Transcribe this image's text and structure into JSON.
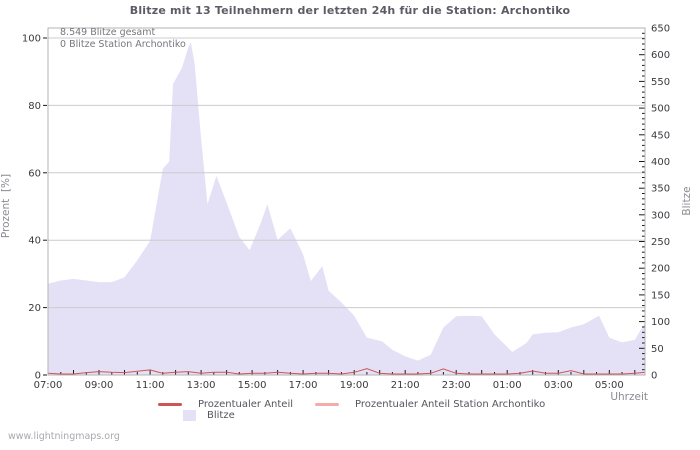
{
  "page": {
    "watermark": "www.lightningmaps.org"
  },
  "chart_data": {
    "type": "area",
    "title": "Blitze mit 13 Teilnehmern der letzten 24h für die Station: Archontiko",
    "annotations": [
      "8.549 Blitze gesamt",
      "0 Blitze Station Archontiko"
    ],
    "grid": "horizontal-only",
    "legend_position": "bottom",
    "colors": {
      "area_fill": "#e4e1f7",
      "percent_line": "#cc5555",
      "station_line": "#f5abab",
      "gridline": "#cccccc",
      "frame": "#b3b3b3",
      "tick": "#1a1a1a"
    },
    "x_axis": {
      "label": "Uhrzeit",
      "range_hours": [
        0,
        23.4
      ],
      "minor_step_hours": 0.5,
      "ticks": [
        {
          "h": 0,
          "label": "07:00"
        },
        {
          "h": 2,
          "label": "09:00"
        },
        {
          "h": 4,
          "label": "11:00"
        },
        {
          "h": 6,
          "label": "13:00"
        },
        {
          "h": 8,
          "label": "15:00"
        },
        {
          "h": 10,
          "label": "17:00"
        },
        {
          "h": 12,
          "label": "19:00"
        },
        {
          "h": 14,
          "label": "21:00"
        },
        {
          "h": 16,
          "label": "23:00"
        },
        {
          "h": 18,
          "label": "01:00"
        },
        {
          "h": 20,
          "label": "03:00"
        },
        {
          "h": 22,
          "label": "05:00"
        }
      ]
    },
    "y_axis_left": {
      "label": "Prozent  [%]",
      "range": [
        0,
        100
      ],
      "ticks": [
        0,
        20,
        40,
        60,
        80,
        100
      ]
    },
    "y_axis_right": {
      "label": "Blitze",
      "range": [
        0,
        650
      ],
      "minor_step": 10,
      "ticks": [
        0,
        50,
        100,
        150,
        200,
        250,
        300,
        350,
        400,
        450,
        500,
        550,
        600,
        650
      ]
    },
    "series": [
      {
        "name": "Prozentualer Anteil",
        "type": "line",
        "axis": "left",
        "color": "#cc5555",
        "points": [
          [
            0,
            0.5
          ],
          [
            0.5,
            0.3
          ],
          [
            1,
            0.3
          ],
          [
            1.5,
            0.7
          ],
          [
            2,
            1
          ],
          [
            2.5,
            0.8
          ],
          [
            3,
            0.7
          ],
          [
            3.5,
            1.1
          ],
          [
            4,
            1.5
          ],
          [
            4.3,
            0.9
          ],
          [
            4.5,
            0.5
          ],
          [
            5,
            0.8
          ],
          [
            5.5,
            1
          ],
          [
            6,
            0.5
          ],
          [
            6.5,
            0.8
          ],
          [
            7,
            0.8
          ],
          [
            7.5,
            0.3
          ],
          [
            8,
            0.5
          ],
          [
            8.5,
            0.5
          ],
          [
            9,
            0.8
          ],
          [
            9.5,
            0.5
          ],
          [
            10,
            0.3
          ],
          [
            10.5,
            0.5
          ],
          [
            11,
            0.5
          ],
          [
            11.5,
            0.3
          ],
          [
            12,
            0.8
          ],
          [
            12.5,
            1.9
          ],
          [
            13,
            0.5
          ],
          [
            13.5,
            0.3
          ],
          [
            14,
            0.3
          ],
          [
            14.5,
            0.3
          ],
          [
            15,
            0.5
          ],
          [
            15.5,
            1.8
          ],
          [
            16,
            0.5
          ],
          [
            16.5,
            0.3
          ],
          [
            17,
            0.3
          ],
          [
            17.5,
            0.3
          ],
          [
            18,
            0.3
          ],
          [
            18.5,
            0.5
          ],
          [
            19,
            1.2
          ],
          [
            19.5,
            0.5
          ],
          [
            20,
            0.5
          ],
          [
            20.5,
            1.3
          ],
          [
            21,
            0.3
          ],
          [
            21.5,
            0.3
          ],
          [
            22,
            0.3
          ],
          [
            22.5,
            0.3
          ],
          [
            23,
            0.5
          ],
          [
            23.4,
            0.8
          ]
        ]
      },
      {
        "name": "Prozentualer Anteil Station Archontiko",
        "type": "line",
        "axis": "left",
        "color": "#f5abab",
        "points": [
          [
            0,
            0
          ],
          [
            23.4,
            0
          ]
        ]
      },
      {
        "name": "Blitze",
        "type": "area",
        "axis": "right",
        "color": "#e4e1f7",
        "points": [
          [
            0,
            171
          ],
          [
            0.5,
            177
          ],
          [
            1,
            180
          ],
          [
            1.5,
            177
          ],
          [
            2,
            174
          ],
          [
            2.5,
            174
          ],
          [
            3,
            183
          ],
          [
            3.5,
            215
          ],
          [
            4,
            251
          ],
          [
            4.5,
            386
          ],
          [
            4.75,
            400
          ],
          [
            4.9,
            545
          ],
          [
            5.25,
            575
          ],
          [
            5.5,
            614
          ],
          [
            5.6,
            623
          ],
          [
            5.75,
            582
          ],
          [
            6,
            443
          ],
          [
            6.25,
            320
          ],
          [
            6.6,
            373
          ],
          [
            7,
            323
          ],
          [
            7.5,
            259
          ],
          [
            7.9,
            234
          ],
          [
            8.3,
            280
          ],
          [
            8.6,
            320
          ],
          [
            9,
            253
          ],
          [
            9.5,
            275
          ],
          [
            10,
            226
          ],
          [
            10.3,
            176
          ],
          [
            10.75,
            204
          ],
          [
            11,
            158
          ],
          [
            11.5,
            136
          ],
          [
            12,
            111
          ],
          [
            12.5,
            70
          ],
          [
            13.1,
            63
          ],
          [
            13.5,
            47
          ],
          [
            14,
            35
          ],
          [
            14.5,
            27
          ],
          [
            15,
            38
          ],
          [
            15.5,
            89
          ],
          [
            16,
            110
          ],
          [
            16.5,
            111
          ],
          [
            17,
            110
          ],
          [
            17.5,
            76
          ],
          [
            18.2,
            43
          ],
          [
            18.75,
            60
          ],
          [
            19,
            76
          ],
          [
            19.5,
            79
          ],
          [
            20,
            80
          ],
          [
            20.5,
            89
          ],
          [
            21,
            95
          ],
          [
            21.6,
            111
          ],
          [
            22,
            70
          ],
          [
            22.5,
            61
          ],
          [
            23,
            66
          ],
          [
            23.4,
            98
          ]
        ]
      }
    ]
  }
}
